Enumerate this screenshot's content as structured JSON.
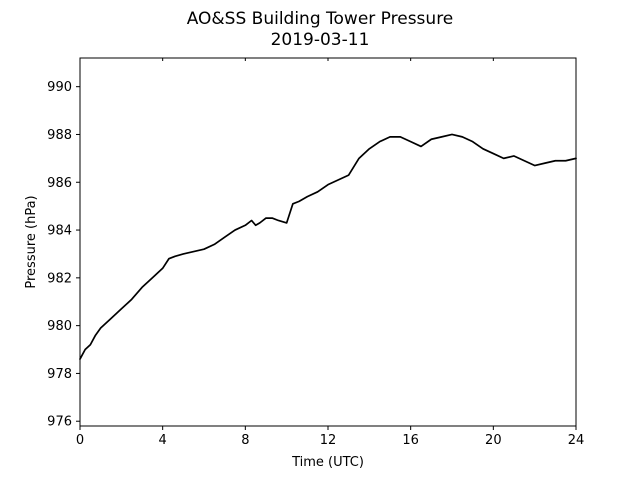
{
  "chart_data": {
    "type": "line",
    "title": "AO&SS Building Tower Pressure",
    "subtitle": "2019-03-11",
    "xlabel": "Time (UTC)",
    "ylabel": "Pressure (hPa)",
    "xlim": [
      0,
      24
    ],
    "ylim": [
      975.8,
      991.2
    ],
    "xticks": [
      0,
      4,
      8,
      12,
      16,
      20,
      24
    ],
    "yticks": [
      976,
      978,
      980,
      982,
      984,
      986,
      988,
      990
    ],
    "grid": false,
    "line_color": "#000000",
    "series": [
      {
        "x": [
          0,
          0.25,
          0.5,
          0.75,
          1,
          1.5,
          2,
          2.5,
          3,
          3.5,
          4,
          4.3,
          4.6,
          5,
          5.5,
          6,
          6.5,
          7,
          7.5,
          8,
          8.3,
          8.5,
          8.7,
          9,
          9.3,
          9.6,
          10,
          10.3,
          10.6,
          11,
          11.5,
          12,
          12.5,
          13,
          13.5,
          14,
          14.5,
          15,
          15.5,
          16,
          16.5,
          17,
          17.5,
          18,
          18.5,
          19,
          19.5,
          20,
          20.5,
          21,
          21.5,
          22,
          22.5,
          23,
          23.5,
          24
        ],
        "values": [
          978.6,
          979.0,
          979.2,
          979.6,
          979.9,
          980.3,
          980.7,
          981.1,
          981.6,
          982.0,
          982.4,
          982.8,
          982.9,
          983.0,
          983.1,
          983.2,
          983.4,
          983.7,
          984.0,
          984.2,
          984.4,
          984.2,
          984.3,
          984.5,
          984.5,
          984.4,
          984.3,
          985.1,
          985.2,
          985.4,
          985.6,
          985.9,
          986.1,
          986.3,
          987.0,
          987.4,
          987.7,
          987.9,
          987.9,
          987.7,
          987.5,
          987.8,
          987.9,
          988.0,
          987.9,
          987.7,
          987.4,
          987.2,
          987.0,
          987.1,
          986.9,
          986.7,
          986.8,
          986.9,
          986.9,
          987.0
        ]
      }
    ]
  }
}
